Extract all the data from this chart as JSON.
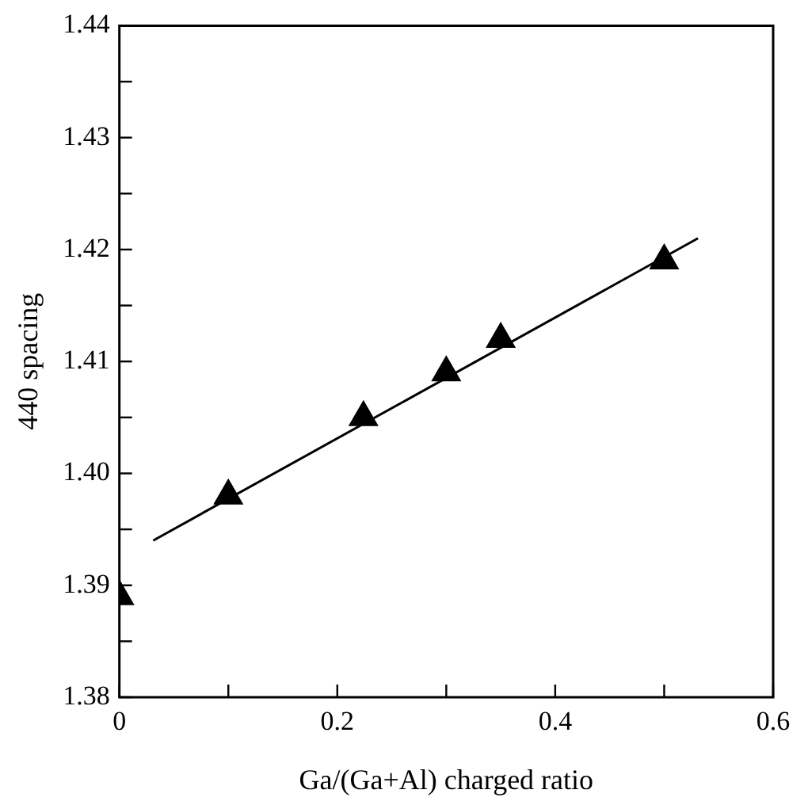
{
  "chart_data": {
    "type": "scatter",
    "xlabel": "Ga/(Ga+Al) charged ratio",
    "ylabel": "440 spacing",
    "xlim": [
      0,
      0.6
    ],
    "ylim": [
      1.38,
      1.44
    ],
    "xticks": [
      0,
      {
        "value": 0.1,
        "label": null
      },
      0.2,
      {
        "value": 0.3,
        "label": null
      },
      0.4,
      {
        "value": 0.5,
        "label": null
      },
      0.6
    ],
    "yticks": [
      1.38,
      {
        "value": 1.385,
        "label": null
      },
      1.39,
      {
        "value": 1.395,
        "label": null
      },
      {
        "value": 1.4,
        "label": "1.40"
      },
      {
        "value": 1.405,
        "label": null
      },
      1.41,
      {
        "value": 1.415,
        "label": null
      },
      1.42,
      {
        "value": 1.425,
        "label": null
      },
      1.43,
      {
        "value": 1.435,
        "label": null
      },
      1.44
    ],
    "grid": false,
    "legend": false,
    "series": [
      {
        "color": "#000000",
        "marker": "triangle",
        "x": [
          0,
          0.1,
          0.224,
          0.3,
          0.35,
          0.5
        ],
        "values": [
          1.389,
          1.398,
          1.405,
          1.409,
          1.412,
          1.419
        ]
      },
      {
        "type": "line",
        "color": "#000000",
        "marker": "none",
        "line_style": "solid",
        "x": [
          0.031,
          0.531
        ],
        "values": [
          1.394,
          1.421
        ]
      }
    ]
  }
}
